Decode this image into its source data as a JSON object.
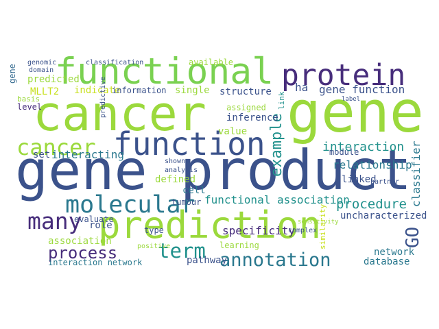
{
  "words": [
    "cancer",
    "gene",
    "gene product",
    "prediction",
    "functional",
    "protein",
    "function",
    "cancer",
    "molecular",
    "many",
    "process",
    "association",
    "interaction network",
    "term",
    "annotation",
    "procedure",
    "interaction",
    "example",
    "relationship",
    "GO",
    "classifier",
    "gene function",
    "label",
    "functional association",
    "specificity",
    "uncharacterized",
    "network",
    "database",
    "pathway",
    "linked",
    "module",
    "interacting",
    "set",
    "value",
    "inference",
    "structure",
    "assigned",
    "MLLT2",
    "indicate",
    "information",
    "single",
    "ha",
    "predicted",
    "genomic",
    "domain",
    "classification",
    "available",
    "level",
    "basis",
    "evaluate",
    "role",
    "defined",
    "cell",
    "tumour",
    "type",
    "positive",
    "learning",
    "complex",
    "link",
    "gene",
    "analysis",
    "shown",
    "sensitivity",
    "similarity",
    "partner",
    "predictive"
  ]
}
